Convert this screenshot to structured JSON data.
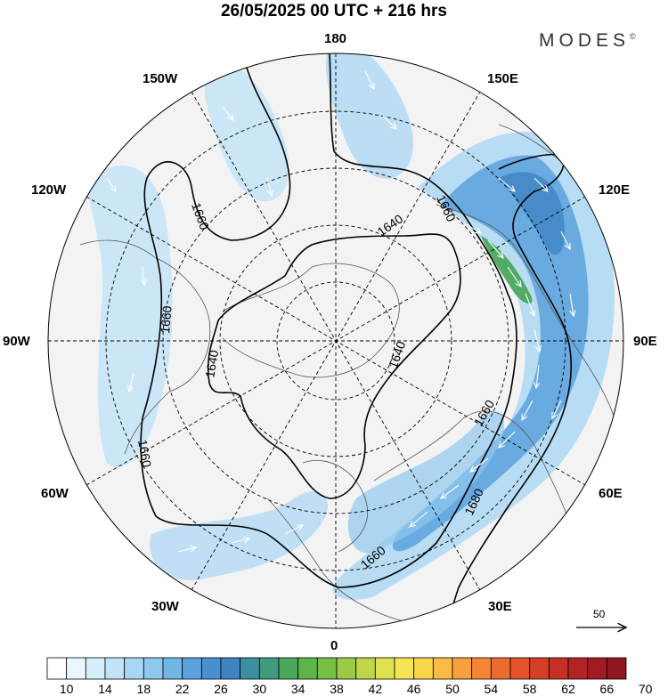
{
  "header": {
    "title": "26/05/2025  00 UTC  + 216 hrs",
    "brand": "MODES",
    "brand_mark": "©"
  },
  "longitude_labels": {
    "n180": "180",
    "e150": "150E",
    "e120": "120E",
    "e90": "90E",
    "e60": "60E",
    "e30": "30E",
    "s0": "0",
    "w30": "30W",
    "w60": "60W",
    "w90": "90W",
    "w120": "120W",
    "w150": "150W"
  },
  "contours": {
    "c1640a": "1640",
    "c1640b": "1640",
    "c1640c": "1640",
    "c1660a": "1660",
    "c1660b": "1660",
    "c1660c": "1660",
    "c1660d": "1660",
    "c1660e": "1660",
    "c1660f": "1660",
    "c1680": "1680"
  },
  "vector_legend": {
    "value": "50"
  },
  "colorbar": {
    "levels": [
      10,
      12,
      14,
      16,
      18,
      20,
      22,
      24,
      26,
      28,
      30,
      32,
      34,
      36,
      38,
      40,
      42,
      44,
      46,
      48,
      50,
      52,
      54,
      56,
      58,
      60,
      62,
      64,
      66,
      68,
      70
    ],
    "labels": [
      "10",
      "14",
      "18",
      "22",
      "26",
      "30",
      "34",
      "38",
      "42",
      "46",
      "50",
      "54",
      "58",
      "62",
      "66",
      "70"
    ],
    "colors": [
      "#ffffff",
      "#eaf6fd",
      "#d6eefb",
      "#c1e4f8",
      "#a9d6f3",
      "#8ec8ee",
      "#72b6e6",
      "#5ba2dc",
      "#4890cf",
      "#3f84c2",
      "#3c8fa0",
      "#3e9b7c",
      "#49a85c",
      "#5db449",
      "#76c043",
      "#9acb44",
      "#bdd748",
      "#dde24e",
      "#f6e553",
      "#fbd54b",
      "#fbbb43",
      "#f8a03c",
      "#f38535",
      "#ec6b2f",
      "#e2532a",
      "#d53f27",
      "#c52f25",
      "#b42323",
      "#a11c22",
      "#8f1820"
    ]
  }
}
